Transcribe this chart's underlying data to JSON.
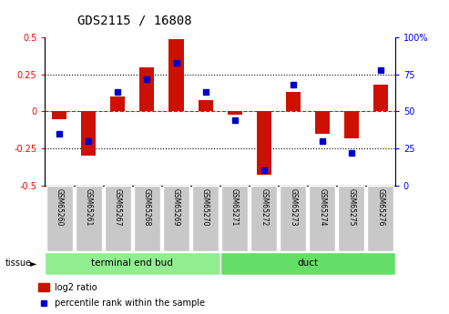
{
  "title": "GDS2115 / 16808",
  "samples": [
    "GSM65260",
    "GSM65261",
    "GSM65267",
    "GSM65268",
    "GSM65269",
    "GSM65270",
    "GSM65271",
    "GSM65272",
    "GSM65273",
    "GSM65274",
    "GSM65275",
    "GSM65276"
  ],
  "log2_ratio": [
    -0.05,
    -0.3,
    0.1,
    0.3,
    0.49,
    0.08,
    -0.02,
    -0.43,
    0.13,
    -0.15,
    -0.18,
    0.18
  ],
  "percentile_rank": [
    35,
    30,
    63,
    72,
    83,
    63,
    44,
    10,
    68,
    30,
    22,
    78
  ],
  "groups": [
    {
      "label": "terminal end bud",
      "start": 0,
      "end": 6,
      "color": "#90EE90"
    },
    {
      "label": "duct",
      "start": 6,
      "end": 12,
      "color": "#66DD66"
    }
  ],
  "bar_color": "#CC1100",
  "point_color": "#0000CC",
  "ylim_left": [
    -0.5,
    0.5
  ],
  "ylim_right": [
    0,
    100
  ],
  "yticks_left": [
    -0.5,
    -0.25,
    0.0,
    0.25,
    0.5
  ],
  "yticks_right": [
    0,
    25,
    50,
    75,
    100
  ],
  "tissue_label": "tissue",
  "legend_entries": [
    "log2 ratio",
    "percentile rank within the sample"
  ],
  "bar_width": 0.5,
  "point_size": 5,
  "xlim": [
    -0.5,
    11.5
  ]
}
